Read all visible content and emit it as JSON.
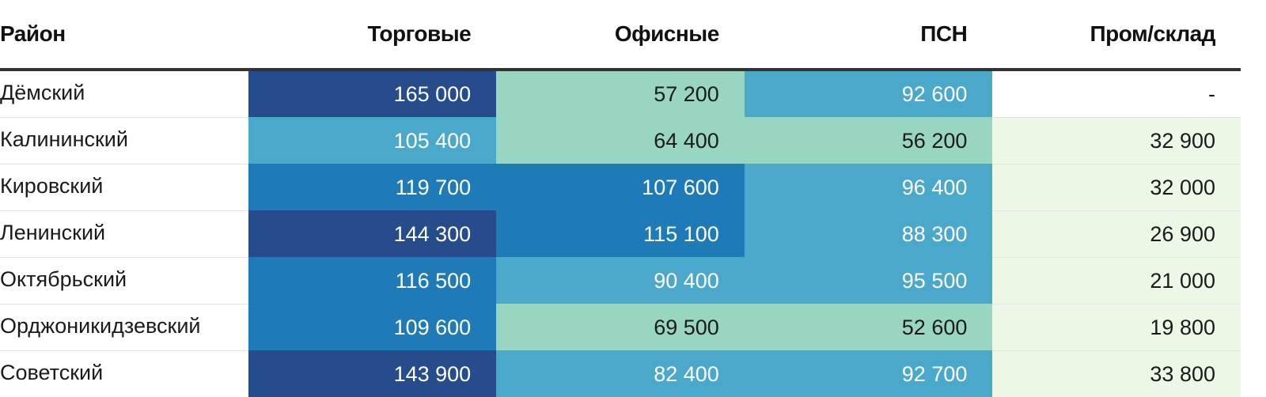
{
  "table": {
    "header": [
      "Район",
      "Торговые",
      "Офисные",
      "ПСН",
      "Пром/склад"
    ],
    "rows": [
      [
        "Дёмский",
        "165 000",
        "57 200",
        "92 600",
        "-"
      ],
      [
        "Калининский",
        "105 400",
        "64 400",
        "56 200",
        "32 900"
      ],
      [
        "Кировский",
        "119 700",
        "107 600",
        "96 400",
        "32 000"
      ],
      [
        "Ленинский",
        "144 300",
        "115 100",
        "88 300",
        "26 900"
      ],
      [
        "Октябрьский",
        "116 500",
        "90 400",
        "95 500",
        "21 000"
      ],
      [
        "Орджоникидзевский",
        "109 600",
        "69 500",
        "52 600",
        "19 800"
      ],
      [
        "Советский",
        "143 900",
        "82 400",
        "92 700",
        "33 800"
      ]
    ],
    "cell_colors": [
      [
        "#264c8c",
        "#98d6c1",
        "#4aa8cb",
        "#ffffff"
      ],
      [
        "#4aa8cb",
        "#98d6c1",
        "#98d6c1",
        "#edf7e6"
      ],
      [
        "#1f7bb8",
        "#1f7bb8",
        "#4aa8cb",
        "#edf7e6"
      ],
      [
        "#264c8c",
        "#1f7bb8",
        "#4aa8cb",
        "#edf7e6"
      ],
      [
        "#1f7bb8",
        "#4aa8cb",
        "#4aa8cb",
        "#edf7e6"
      ],
      [
        "#1f7bb8",
        "#98d6c1",
        "#98d6c1",
        "#edf7e6"
      ],
      [
        "#264c8c",
        "#4aa8cb",
        "#4aa8cb",
        "#edf7e6"
      ]
    ]
  }
}
